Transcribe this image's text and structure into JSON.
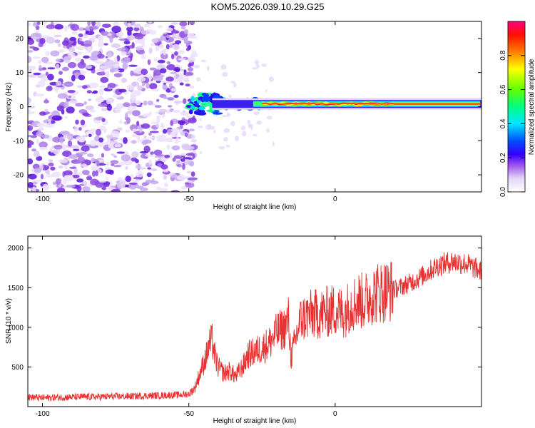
{
  "chart_data": [
    {
      "type": "heatmap",
      "title": "KOM5.2026.039.10.29.G25",
      "xlabel": "Height of straight line (km)",
      "ylabel": "Frequency (Hz)",
      "xlim": [
        -105,
        50
      ],
      "ylim": [
        -25,
        25
      ],
      "x_ticks": [
        -100,
        -50,
        0
      ],
      "x_tick_labels": [
        "-100",
        "-50",
        "0"
      ],
      "y_ticks": [
        20,
        10,
        0,
        -10,
        -20
      ],
      "y_tick_labels": [
        "20",
        "10",
        "0",
        "-10",
        "-20"
      ],
      "noise_region_x": [
        -105,
        -48
      ],
      "signal_start_x": -50,
      "signal_center_freq_hz": 0.8,
      "colorbar": {
        "label": "Normalized spectral amplitude",
        "range": [
          0,
          1
        ],
        "ticks": [
          0.0,
          0.2,
          0.4,
          0.6,
          0.8
        ],
        "tick_labels": [
          "0.0",
          "0.2",
          "0.4",
          "0.6",
          "0.8"
        ],
        "colormap": [
          "#ffffff",
          "#d9c6f2",
          "#8a2be2",
          "#3300ff",
          "#0040ff",
          "#00ffff",
          "#00ff80",
          "#80ff00",
          "#ffff00",
          "#ff8000",
          "#ff0000",
          "#ff0080"
        ]
      }
    },
    {
      "type": "line",
      "xlabel": "Height of straight line (km)",
      "ylabel": "SNR (10 * v/v)",
      "xlim": [
        -105,
        50
      ],
      "ylim": [
        0,
        2150
      ],
      "x_ticks": [
        -100,
        -50,
        0
      ],
      "x_tick_labels": [
        "-100",
        "-50",
        "0"
      ],
      "y_ticks": [
        500,
        1000,
        1500,
        2000
      ],
      "y_tick_labels": [
        "500",
        "1000",
        "1500",
        "2000"
      ],
      "color": "#e83030",
      "series": [
        {
          "name": "SNR",
          "x": [
            -105,
            -100,
            -90,
            -80,
            -70,
            -60,
            -52,
            -50,
            -48,
            -46,
            -44,
            -43,
            -42,
            -41,
            -40,
            -38,
            -36,
            -34,
            -31,
            -30,
            -28,
            -26,
            -24,
            -22,
            -20,
            -17,
            -16,
            -15,
            -12,
            -10,
            -8,
            -5,
            -2,
            0,
            3,
            5,
            8,
            10,
            12,
            15,
            20,
            25,
            30,
            35,
            40,
            45,
            50
          ],
          "values": [
            120,
            110,
            120,
            125,
            130,
            140,
            150,
            160,
            230,
            440,
            640,
            780,
            830,
            620,
            500,
            420,
            450,
            380,
            540,
            650,
            680,
            720,
            760,
            820,
            930,
            1000,
            1100,
            620,
            1080,
            1140,
            1160,
            1170,
            1200,
            1220,
            1180,
            1280,
            1340,
            1320,
            1400,
            1450,
            1470,
            1550,
            1650,
            1780,
            1830,
            1800,
            1700
          ]
        }
      ]
    }
  ]
}
